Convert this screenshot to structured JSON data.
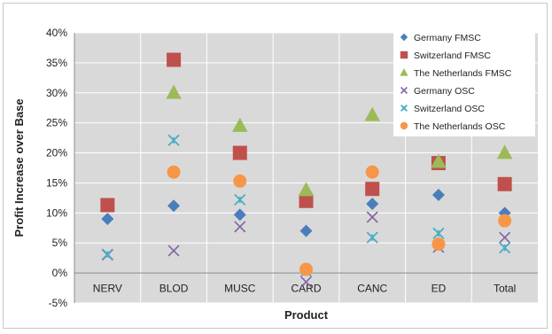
{
  "chart_data": {
    "type": "scatter",
    "title": "",
    "xlabel": "Product",
    "ylabel": "Profit Increase over Base",
    "categories": [
      "NERV",
      "BLOD",
      "MUSC",
      "CARD",
      "CANC",
      "ED",
      "Total"
    ],
    "ylim": [
      -5,
      40
    ],
    "yticks": [
      -5,
      0,
      5,
      10,
      15,
      20,
      25,
      30,
      35,
      40
    ],
    "ytick_labels": [
      "-5%",
      "0%",
      "5%",
      "10%",
      "15%",
      "20%",
      "25%",
      "30%",
      "35%",
      "40%"
    ],
    "grid": true,
    "legend_position": "top-right",
    "series": [
      {
        "name": "Germany FMSC",
        "marker": "diamond",
        "color": "#4a7ebb",
        "values": [
          9,
          11.2,
          9.7,
          7,
          11.5,
          13,
          10
        ]
      },
      {
        "name": "Switzerland FMSC",
        "marker": "square",
        "color": "#c0504d",
        "values": [
          11.3,
          35.5,
          20,
          12,
          14,
          18.3,
          14.8
        ]
      },
      {
        "name": "The Netherlands FMSC",
        "marker": "triangle",
        "color": "#9bbb59",
        "values": [
          null,
          30,
          24.5,
          13.8,
          26.3,
          18.5,
          20
        ]
      },
      {
        "name": "Germany OSC",
        "marker": "x",
        "color": "#8064a2",
        "values": [
          3,
          3.7,
          7.7,
          -1.5,
          9.3,
          4.3,
          5.9
        ]
      },
      {
        "name": "Switzerland OSC",
        "marker": "star",
        "color": "#4bacc6",
        "values": [
          3.1,
          22.1,
          12.2,
          0.3,
          5.9,
          6.6,
          4.2
        ]
      },
      {
        "name": "The Netherlands OSC",
        "marker": "circle",
        "color": "#f79646",
        "values": [
          null,
          16.8,
          15.3,
          0.6,
          16.8,
          4.8,
          8.7
        ]
      }
    ]
  }
}
